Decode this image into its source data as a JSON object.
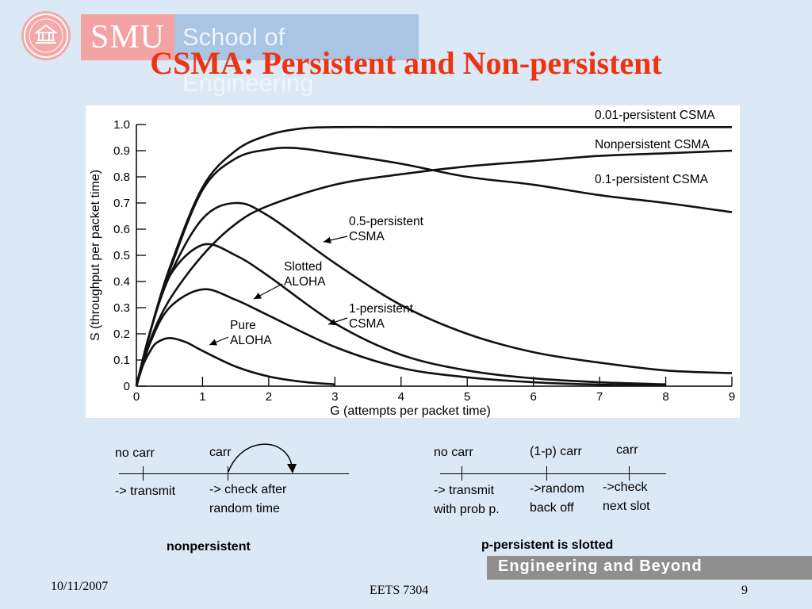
{
  "header": {
    "logo_smu": "SMU",
    "logo_school": "School of Engineering",
    "title": "CSMA: Persistent and Non-persistent"
  },
  "chart_data": {
    "type": "line",
    "title": "",
    "xlabel": "G (attempts per packet time)",
    "ylabel": "S (throughput per packet time)",
    "xlim": [
      0,
      9
    ],
    "ylim": [
      0,
      1.0
    ],
    "xticks": [
      "0",
      "1",
      "2",
      "3",
      "4",
      "5",
      "6",
      "7",
      "8",
      "9"
    ],
    "yticks": [
      "0",
      "0.1",
      "0.2",
      "0.3",
      "0.4",
      "0.5",
      "0.6",
      "0.7",
      "0.8",
      "0.9",
      "1.0"
    ],
    "grid": false,
    "series": [
      {
        "name": "0.01-persistent CSMA",
        "x": [
          0,
          0.2,
          0.5,
          1,
          1.5,
          2,
          2.5,
          3,
          4,
          5,
          6,
          7,
          8,
          9
        ],
        "y": [
          0,
          0.2,
          0.45,
          0.76,
          0.9,
          0.96,
          0.985,
          0.99,
          0.99,
          0.99,
          0.99,
          0.99,
          0.99,
          0.99
        ]
      },
      {
        "name": "Nonpersistent CSMA",
        "x": [
          0,
          0.2,
          0.5,
          1,
          1.5,
          2,
          3,
          4,
          5,
          6,
          7,
          8,
          9
        ],
        "y": [
          0,
          0.17,
          0.33,
          0.5,
          0.62,
          0.69,
          0.77,
          0.81,
          0.84,
          0.86,
          0.88,
          0.89,
          0.9
        ]
      },
      {
        "name": "0.1-persistent CSMA",
        "x": [
          0,
          0.2,
          0.5,
          1,
          1.5,
          2,
          2.4,
          3,
          4,
          5,
          6,
          7,
          8,
          9
        ],
        "y": [
          0,
          0.2,
          0.44,
          0.75,
          0.87,
          0.905,
          0.91,
          0.89,
          0.85,
          0.8,
          0.77,
          0.73,
          0.7,
          0.665
        ]
      },
      {
        "name": "0.5-persistent CSMA",
        "x": [
          0,
          0.2,
          0.5,
          1,
          1.5,
          2,
          3,
          4,
          5,
          6,
          7,
          8,
          9
        ],
        "y": [
          0,
          0.2,
          0.42,
          0.64,
          0.7,
          0.65,
          0.47,
          0.31,
          0.2,
          0.13,
          0.09,
          0.06,
          0.05
        ]
      },
      {
        "name": "Slotted ALOHA",
        "x": [
          0,
          0.2,
          0.5,
          1,
          1.5,
          2,
          3,
          4,
          5,
          6,
          7,
          8
        ],
        "y": [
          0,
          0.16,
          0.3,
          0.37,
          0.33,
          0.27,
          0.15,
          0.07,
          0.034,
          0.015,
          0.006,
          0.003
        ]
      },
      {
        "name": "1-persistent CSMA",
        "x": [
          0,
          0.2,
          0.5,
          1,
          1.5,
          2,
          3,
          4,
          5,
          6,
          7,
          8
        ],
        "y": [
          0,
          0.2,
          0.42,
          0.54,
          0.5,
          0.42,
          0.24,
          0.12,
          0.06,
          0.03,
          0.015,
          0.007
        ]
      },
      {
        "name": "Pure ALOHA",
        "x": [
          0,
          0.1,
          0.2,
          0.3,
          0.5,
          0.75,
          1,
          1.5,
          2,
          2.5,
          3
        ],
        "y": [
          0,
          0.08,
          0.13,
          0.165,
          0.184,
          0.168,
          0.135,
          0.075,
          0.037,
          0.017,
          0.007
        ]
      }
    ],
    "labels": [
      {
        "series": "0.01-persistent CSMA",
        "lines": [
          "0.01-persistent CSMA"
        ]
      },
      {
        "series": "Nonpersistent CSMA",
        "lines": [
          "Nonpersistent CSMA"
        ]
      },
      {
        "series": "0.1-persistent CSMA",
        "lines": [
          "0.1-persistent CSMA"
        ]
      },
      {
        "series": "0.5-persistent CSMA",
        "lines": [
          "0.5-persistent",
          "CSMA"
        ]
      },
      {
        "series": "Slotted ALOHA",
        "lines": [
          "Slotted",
          "ALOHA"
        ]
      },
      {
        "series": "1-persistent CSMA",
        "lines": [
          "1-persistent",
          "CSMA"
        ]
      },
      {
        "series": "Pure ALOHA",
        "lines": [
          "Pure",
          "ALOHA"
        ]
      }
    ]
  },
  "nonpersistent": {
    "no_carr": "no carr",
    "carr": "carr",
    "transmit": "-> transmit",
    "check_line1": "-> check after",
    "check_line2": "random time",
    "caption": "nonpersistent"
  },
  "ppersistent": {
    "no_carr": "no carr",
    "p_carr": "(1-p) carr",
    "carr": "carr",
    "transmit_line1": "-> transmit",
    "transmit_line2": "with prob p.",
    "random_line1": "->random",
    "random_line2": "back off",
    "check_line1": "->check",
    "check_line2": "next slot",
    "caption": "p-persistent is slotted"
  },
  "footer": {
    "date": "10/11/2007",
    "course": "EETS 7304",
    "page": "9",
    "tagline": "Engineering and Beyond"
  }
}
